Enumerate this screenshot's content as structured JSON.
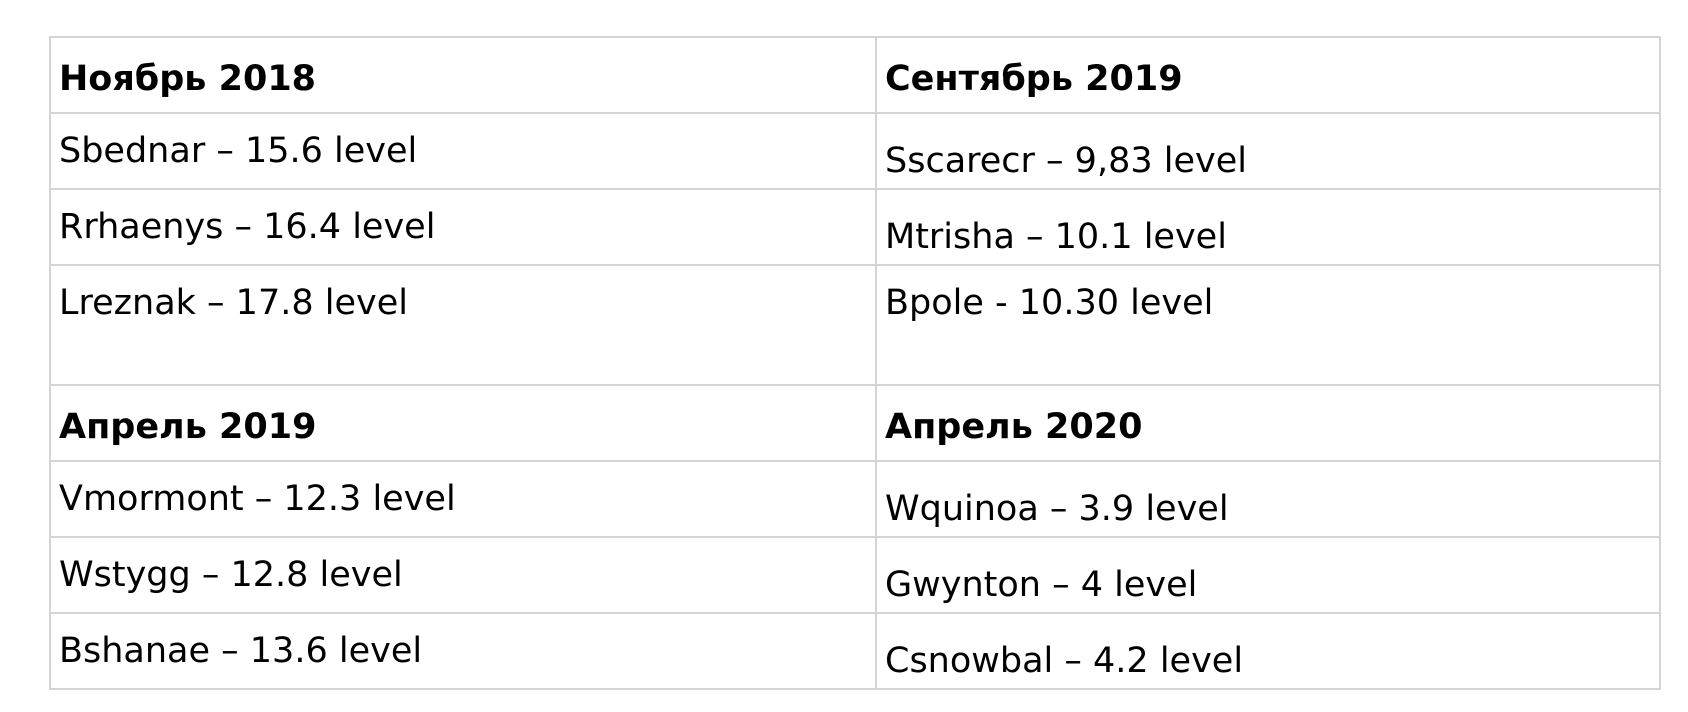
{
  "sections": [
    {
      "left": {
        "heading": "Ноябрь 2018",
        "entries": [
          "Sbednar – 15.6 level",
          "Rrhaenys – 16.4 level",
          "Lreznak – 17.8 level"
        ]
      },
      "right": {
        "heading": "Сентябрь 2019",
        "entries": [
          "Sscarecr – 9,83 level",
          "Mtrisha – 10.1 level",
          "Bpole - 10.30 level"
        ]
      }
    },
    {
      "left": {
        "heading": "Апрель 2019",
        "entries": [
          "Vmormont – 12.3 level",
          "Wstygg – 12.8 level",
          "Bshanae – 13.6 level"
        ]
      },
      "right": {
        "heading": "Апрель 2020",
        "entries": [
          "Wquinoa  – 3.9 level",
          "Gwynton  – 4 level",
          "Csnowbal  – 4.2 level"
        ]
      }
    }
  ]
}
